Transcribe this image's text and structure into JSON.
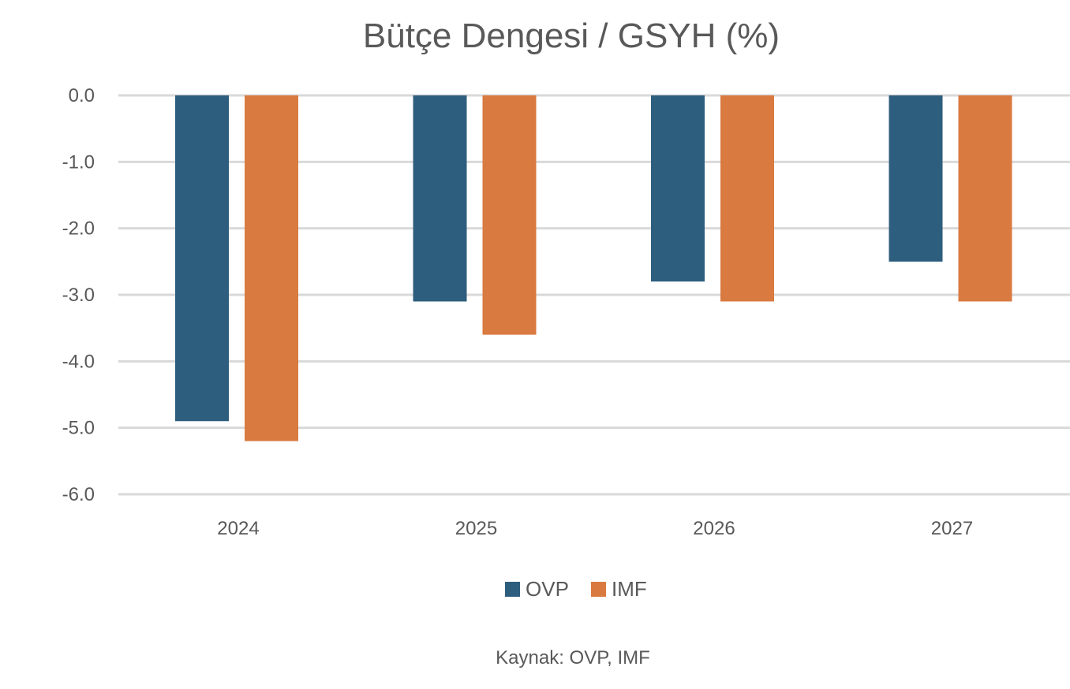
{
  "chart_data": {
    "type": "bar",
    "title": "Bütçe Dengesi  / GSYH (%)",
    "xlabel": "",
    "ylabel": "",
    "categories": [
      "2024",
      "2025",
      "2026",
      "2027"
    ],
    "series": [
      {
        "name": "OVP",
        "color": "#2e5e7e",
        "values": [
          -4.9,
          -3.1,
          -2.8,
          -2.5
        ]
      },
      {
        "name": "IMF",
        "color": "#d97a41",
        "values": [
          -5.2,
          -3.6,
          -3.1,
          -3.1
        ]
      }
    ],
    "ylim": [
      -6.0,
      0.0
    ],
    "yticks": [
      "0.0",
      "-1.0",
      "-2.0",
      "-3.0",
      "-4.0",
      "-5.0",
      "-6.0"
    ],
    "grid": true,
    "legend_position": "bottom",
    "gridline_color": "#d9d9d9"
  },
  "source": "Kaynak: OVP, IMF"
}
